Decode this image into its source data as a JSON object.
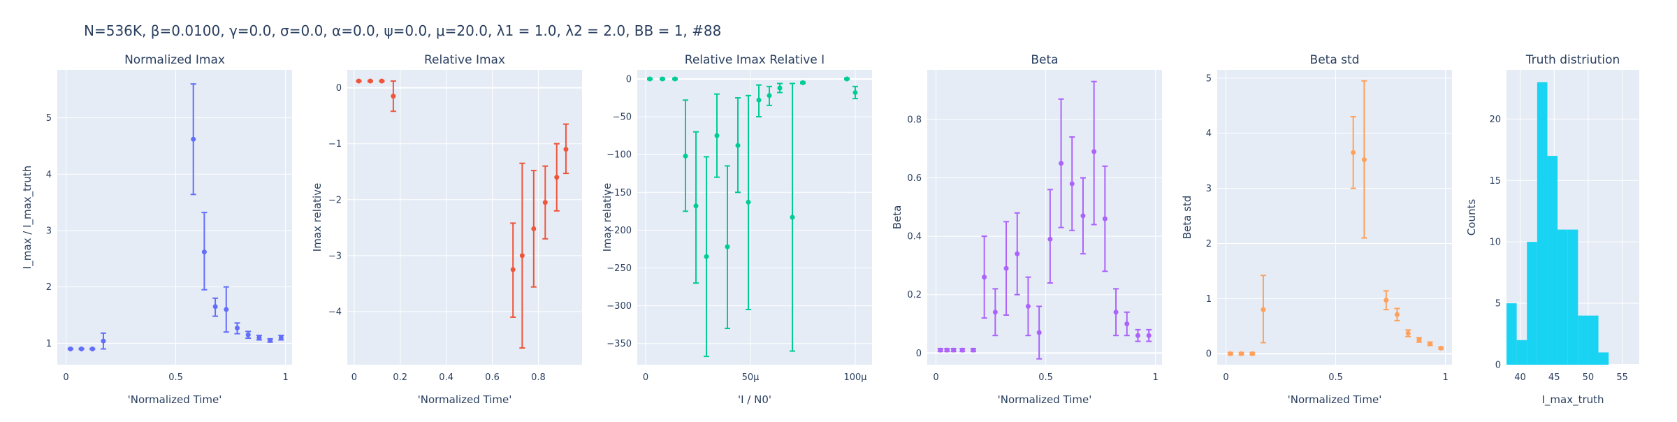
{
  "figure": {
    "suptitle": "N=536K, β=0.0100, γ=0.0, σ=0.0,  α=0.0, ψ=0.0, μ=20.0, λ1 = 1.0, λ2 = 2.0, BB = 1, #88"
  },
  "colors": {
    "plot_bg": "#e5ecf6",
    "grid": "#ffffff",
    "text": "#2a3f5f",
    "blue": "#636efa",
    "red": "#ef553b",
    "green": "#00cc96",
    "purple": "#ab63fa",
    "orange": "#ffa15a",
    "cyan": "#19d3f3"
  },
  "chart_data": [
    {
      "type": "scatter",
      "title": "Normalized Imax",
      "xlabel": "'Normalized Time'",
      "ylabel": "I_max / I_max_truth",
      "color": "#636efa",
      "xlim": [
        -0.04,
        1.03
      ],
      "ylim": [
        0.62,
        5.85
      ],
      "xticks": [
        0,
        0.5,
        1
      ],
      "xtick_labels": [
        "0",
        "0.5",
        "1"
      ],
      "yticks": [
        1,
        2,
        3,
        4,
        5
      ],
      "ytick_labels": [
        "1",
        "2",
        "3",
        "4",
        "5"
      ],
      "points": [
        {
          "x": 0.02,
          "y": 0.9,
          "lo": 0.89,
          "hi": 0.91
        },
        {
          "x": 0.07,
          "y": 0.9,
          "lo": 0.89,
          "hi": 0.91
        },
        {
          "x": 0.12,
          "y": 0.9,
          "lo": 0.89,
          "hi": 0.91
        },
        {
          "x": 0.17,
          "y": 1.04,
          "lo": 0.9,
          "hi": 1.18
        },
        {
          "x": 0.58,
          "y": 4.62,
          "lo": 3.64,
          "hi": 5.6
        },
        {
          "x": 0.63,
          "y": 2.62,
          "lo": 1.95,
          "hi": 3.32
        },
        {
          "x": 0.68,
          "y": 1.65,
          "lo": 1.48,
          "hi": 1.8
        },
        {
          "x": 0.73,
          "y": 1.6,
          "lo": 1.2,
          "hi": 2.0
        },
        {
          "x": 0.78,
          "y": 1.27,
          "lo": 1.17,
          "hi": 1.36
        },
        {
          "x": 0.83,
          "y": 1.15,
          "lo": 1.09,
          "hi": 1.21
        },
        {
          "x": 0.88,
          "y": 1.1,
          "lo": 1.06,
          "hi": 1.14
        },
        {
          "x": 0.93,
          "y": 1.05,
          "lo": 1.02,
          "hi": 1.08
        },
        {
          "x": 0.98,
          "y": 1.1,
          "lo": 1.06,
          "hi": 1.14
        }
      ]
    },
    {
      "type": "scatter",
      "title": "Relative Imax",
      "xlabel": "'Normalized Time'",
      "ylabel": "Imax relative",
      "color": "#ef553b",
      "xlim": [
        -0.03,
        0.99
      ],
      "ylim": [
        -4.95,
        0.32
      ],
      "xticks": [
        0,
        0.2,
        0.4,
        0.6,
        0.8
      ],
      "xtick_labels": [
        "0",
        "0.2",
        "0.4",
        "0.6",
        "0.8"
      ],
      "yticks": [
        0,
        -1,
        -2,
        -3,
        -4
      ],
      "ytick_labels": [
        "0",
        "−1",
        "−2",
        "−3",
        "−4"
      ],
      "points": [
        {
          "x": 0.02,
          "y": 0.12,
          "lo": 0.11,
          "hi": 0.13
        },
        {
          "x": 0.07,
          "y": 0.12,
          "lo": 0.11,
          "hi": 0.13
        },
        {
          "x": 0.12,
          "y": 0.12,
          "lo": 0.11,
          "hi": 0.13
        },
        {
          "x": 0.17,
          "y": -0.15,
          "lo": -0.42,
          "hi": 0.12
        },
        {
          "x": 0.69,
          "y": -3.25,
          "lo": -4.1,
          "hi": -2.42
        },
        {
          "x": 0.73,
          "y": -3.0,
          "lo": -4.65,
          "hi": -1.35
        },
        {
          "x": 0.78,
          "y": -2.52,
          "lo": -3.56,
          "hi": -1.48
        },
        {
          "x": 0.83,
          "y": -2.05,
          "lo": -2.7,
          "hi": -1.4
        },
        {
          "x": 0.88,
          "y": -1.6,
          "lo": -2.2,
          "hi": -1.0
        },
        {
          "x": 0.92,
          "y": -1.1,
          "lo": -1.53,
          "hi": -0.65
        }
      ]
    },
    {
      "type": "scatter",
      "title": "Relative Imax Relative I",
      "xlabel": "'I / N0'",
      "ylabel": "Imax relative",
      "color": "#00cc96",
      "xlim": [
        -4e-06,
        0.000108
      ],
      "ylim": [
        -378,
        12
      ],
      "xticks": [
        0,
        5e-05,
        0.0001
      ],
      "xtick_labels": [
        "0",
        "50μ",
        "100μ"
      ],
      "yticks": [
        0,
        -50,
        -100,
        -150,
        -200,
        -250,
        -300,
        -350
      ],
      "ytick_labels": [
        "0",
        "−50",
        "−100",
        "−150",
        "−200",
        "−250",
        "−300",
        "−350"
      ],
      "points": [
        {
          "x": 2e-06,
          "y": 0,
          "lo": -1,
          "hi": 1
        },
        {
          "x": 8e-06,
          "y": 0,
          "lo": -1,
          "hi": 1
        },
        {
          "x": 1.4e-05,
          "y": 0,
          "lo": -1,
          "hi": 1
        },
        {
          "x": 1.9e-05,
          "y": -102,
          "lo": -175,
          "hi": -28
        },
        {
          "x": 2.4e-05,
          "y": -168,
          "lo": -270,
          "hi": -70
        },
        {
          "x": 2.9e-05,
          "y": -235,
          "lo": -367,
          "hi": -103
        },
        {
          "x": 3.4e-05,
          "y": -75,
          "lo": -130,
          "hi": -20
        },
        {
          "x": 3.9e-05,
          "y": -222,
          "lo": -330,
          "hi": -115
        },
        {
          "x": 4.4e-05,
          "y": -88,
          "lo": -150,
          "hi": -25
        },
        {
          "x": 4.9e-05,
          "y": -163,
          "lo": -305,
          "hi": -22
        },
        {
          "x": 5.4e-05,
          "y": -28,
          "lo": -50,
          "hi": -8
        },
        {
          "x": 5.9e-05,
          "y": -22,
          "lo": -35,
          "hi": -10
        },
        {
          "x": 6.4e-05,
          "y": -12,
          "lo": -18,
          "hi": -6
        },
        {
          "x": 7e-05,
          "y": -183,
          "lo": -360,
          "hi": -6
        },
        {
          "x": 7.5e-05,
          "y": -5,
          "lo": -6,
          "hi": -4
        },
        {
          "x": 9.6e-05,
          "y": 0,
          "lo": -1,
          "hi": 1
        },
        {
          "x": 0.0001,
          "y": -18,
          "lo": -26,
          "hi": -10
        }
      ]
    },
    {
      "type": "scatter",
      "title": "Beta",
      "xlabel": "'Normalized Time'",
      "ylabel": "Beta",
      "color": "#ab63fa",
      "xlim": [
        -0.04,
        1.03
      ],
      "ylim": [
        -0.04,
        0.97
      ],
      "xticks": [
        0,
        0.5,
        1
      ],
      "xtick_labels": [
        "0",
        "0.5",
        "1"
      ],
      "yticks": [
        0,
        0.2,
        0.4,
        0.6,
        0.8
      ],
      "ytick_labels": [
        "0",
        "0.2",
        "0.4",
        "0.6",
        "0.8"
      ],
      "points": [
        {
          "x": 0.02,
          "y": 0.01,
          "lo": 0.005,
          "hi": 0.015
        },
        {
          "x": 0.05,
          "y": 0.01,
          "lo": 0.005,
          "hi": 0.015
        },
        {
          "x": 0.08,
          "y": 0.01,
          "lo": 0.005,
          "hi": 0.015
        },
        {
          "x": 0.12,
          "y": 0.01,
          "lo": 0.005,
          "hi": 0.015
        },
        {
          "x": 0.17,
          "y": 0.01,
          "lo": 0.005,
          "hi": 0.015
        },
        {
          "x": 0.22,
          "y": 0.26,
          "lo": 0.12,
          "hi": 0.4
        },
        {
          "x": 0.27,
          "y": 0.14,
          "lo": 0.06,
          "hi": 0.22
        },
        {
          "x": 0.32,
          "y": 0.29,
          "lo": 0.13,
          "hi": 0.45
        },
        {
          "x": 0.37,
          "y": 0.34,
          "lo": 0.2,
          "hi": 0.48
        },
        {
          "x": 0.42,
          "y": 0.16,
          "lo": 0.06,
          "hi": 0.26
        },
        {
          "x": 0.47,
          "y": 0.07,
          "lo": -0.02,
          "hi": 0.16
        },
        {
          "x": 0.52,
          "y": 0.39,
          "lo": 0.24,
          "hi": 0.56
        },
        {
          "x": 0.57,
          "y": 0.65,
          "lo": 0.43,
          "hi": 0.87
        },
        {
          "x": 0.62,
          "y": 0.58,
          "lo": 0.42,
          "hi": 0.74
        },
        {
          "x": 0.67,
          "y": 0.47,
          "lo": 0.34,
          "hi": 0.6
        },
        {
          "x": 0.72,
          "y": 0.69,
          "lo": 0.44,
          "hi": 0.93
        },
        {
          "x": 0.77,
          "y": 0.46,
          "lo": 0.28,
          "hi": 0.64
        },
        {
          "x": 0.82,
          "y": 0.14,
          "lo": 0.06,
          "hi": 0.22
        },
        {
          "x": 0.87,
          "y": 0.1,
          "lo": 0.06,
          "hi": 0.14
        },
        {
          "x": 0.92,
          "y": 0.06,
          "lo": 0.04,
          "hi": 0.08
        },
        {
          "x": 0.97,
          "y": 0.06,
          "lo": 0.04,
          "hi": 0.08
        }
      ]
    },
    {
      "type": "scatter",
      "title": "Beta std",
      "xlabel": "'Normalized Time'",
      "ylabel": "Beta std",
      "color": "#ffa15a",
      "xlim": [
        -0.04,
        1.03
      ],
      "ylim": [
        -0.2,
        5.15
      ],
      "xticks": [
        0,
        0.5,
        1
      ],
      "xtick_labels": [
        "0",
        "0.5",
        "1"
      ],
      "yticks": [
        0,
        1,
        2,
        3,
        4,
        5
      ],
      "ytick_labels": [
        "0",
        "1",
        "2",
        "3",
        "4",
        "5"
      ],
      "points": [
        {
          "x": 0.02,
          "y": 0,
          "lo": -0.02,
          "hi": 0.02
        },
        {
          "x": 0.07,
          "y": 0,
          "lo": -0.02,
          "hi": 0.02
        },
        {
          "x": 0.12,
          "y": 0,
          "lo": -0.02,
          "hi": 0.02
        },
        {
          "x": 0.17,
          "y": 0.8,
          "lo": 0.2,
          "hi": 1.42
        },
        {
          "x": 0.58,
          "y": 3.65,
          "lo": 3.0,
          "hi": 4.3
        },
        {
          "x": 0.63,
          "y": 3.52,
          "lo": 2.1,
          "hi": 4.95
        },
        {
          "x": 0.73,
          "y": 0.97,
          "lo": 0.8,
          "hi": 1.14
        },
        {
          "x": 0.78,
          "y": 0.71,
          "lo": 0.6,
          "hi": 0.82
        },
        {
          "x": 0.83,
          "y": 0.37,
          "lo": 0.31,
          "hi": 0.43
        },
        {
          "x": 0.88,
          "y": 0.25,
          "lo": 0.21,
          "hi": 0.29
        },
        {
          "x": 0.93,
          "y": 0.18,
          "lo": 0.15,
          "hi": 0.21
        },
        {
          "x": 0.98,
          "y": 0.1,
          "lo": 0.08,
          "hi": 0.12
        }
      ]
    },
    {
      "type": "histogram",
      "title": "Truth distriution",
      "xlabel": "I_max_truth",
      "ylabel": "Counts",
      "color": "#19d3f3",
      "xlim": [
        38,
        57.5
      ],
      "ylim": [
        0,
        24
      ],
      "xticks": [
        40,
        45,
        50,
        55
      ],
      "xtick_labels": [
        "40",
        "45",
        "50",
        "55"
      ],
      "yticks": [
        0,
        5,
        10,
        15,
        20
      ],
      "ytick_labels": [
        "0",
        "5",
        "10",
        "15",
        "20"
      ],
      "bin_edges": [
        38,
        39.5,
        41,
        42.5,
        44,
        45.5,
        47,
        48.5,
        50,
        51.5,
        53,
        54.5,
        56,
        57.5
      ],
      "counts": [
        5,
        2,
        10,
        23,
        17,
        11,
        11,
        4,
        4,
        1,
        0,
        0,
        0
      ]
    }
  ]
}
